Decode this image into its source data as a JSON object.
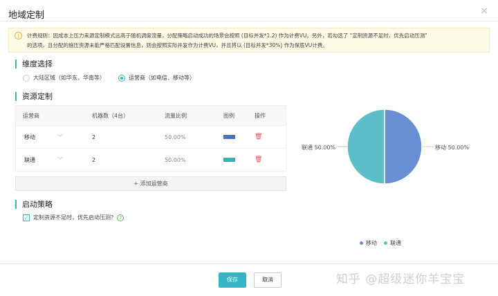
{
  "dialog": {
    "title": "地域定制",
    "close": "×"
  },
  "notice": {
    "icon": "info-icon",
    "line1": "计费规则：因成本上压力来源定制模式远高于随机调度流量，分配策略启动成功的场景会按照 (目标并发*1.2) 作为计费VU。另外，若勾选了 \"定制资源不足时，优先启动压测\"",
    "line2": "的选项，且分配的施压资源未能严格匹配设置信息，则会按照实际并发作为计费VU，并且将以 (目标并发*30%) 作为保底VU计费。"
  },
  "dimension": {
    "title": "维度选择",
    "options": [
      {
        "label": "大陆区域（如华东、华南等）",
        "selected": false
      },
      {
        "label": "运营商（如电信、移动等）",
        "selected": true
      }
    ]
  },
  "resource": {
    "title": "资源定制",
    "headers": [
      "运营商",
      "机器数（4台）",
      "流量比例",
      "图例",
      "操作"
    ],
    "rows": [
      {
        "carrier": "移动",
        "machines": "2",
        "ratio": "50.00%",
        "color": "#4a72c4"
      },
      {
        "carrier": "联通",
        "machines": "2",
        "ratio": "50.00%",
        "color": "#3aafb5"
      }
    ],
    "add_label": "+ 添加运营商"
  },
  "strategy": {
    "title": "启动策略",
    "checkbox_label": "定制资源不足时，优先启动压测?",
    "checked": true,
    "help": "?"
  },
  "chart_data": {
    "type": "pie",
    "categories": [
      "移动",
      "联通"
    ],
    "values": [
      50,
      50
    ],
    "labels": [
      "移动 50.00%",
      "联通 50.00%"
    ],
    "colors": [
      "#6a8fd2",
      "#5cbfca"
    ],
    "legend": "bottom"
  },
  "footer": {
    "save": "保存",
    "cancel": "取消"
  },
  "watermark": "知乎 @超级迷你羊宝宝"
}
